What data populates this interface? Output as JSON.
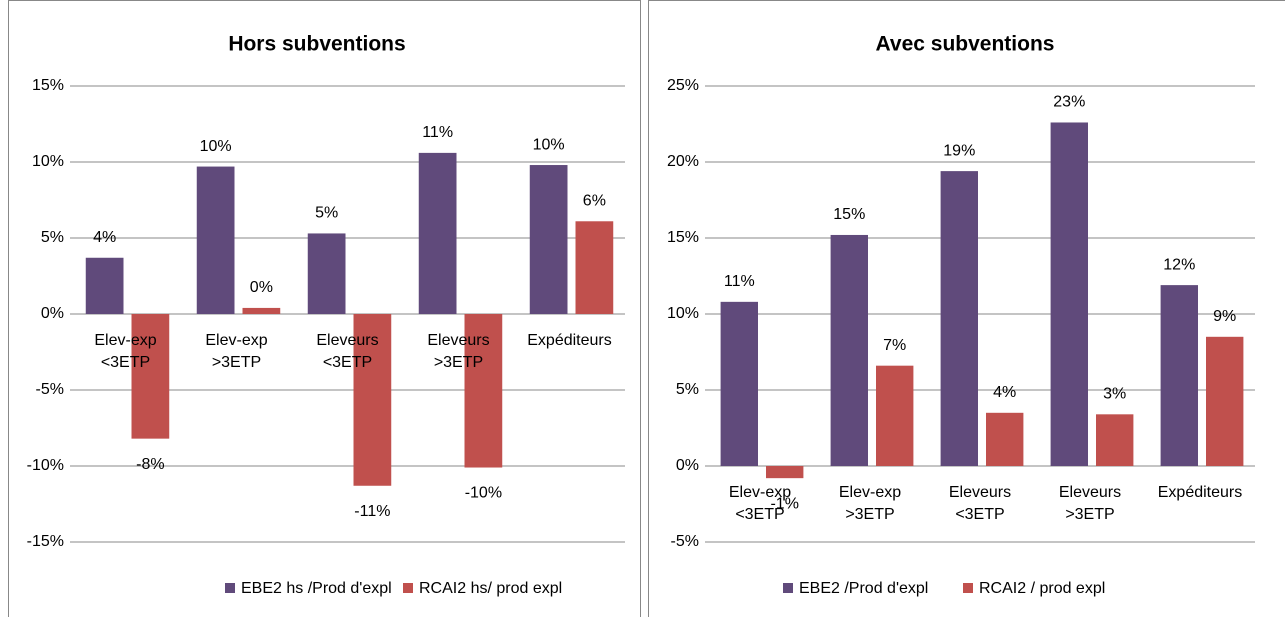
{
  "chart_data": [
    {
      "type": "bar",
      "title": "Hors subventions",
      "categories": [
        "Elev-exp <3ETP",
        "Elev-exp >3ETP",
        "Eleveurs <3ETP",
        "Eleveurs >3ETP",
        "Expéditeurs"
      ],
      "series": [
        {
          "name": "EBE2 hs /Prod d'expl",
          "color": "#604a7b",
          "values": [
            3.7,
            9.7,
            5.3,
            10.6,
            9.8
          ],
          "value_labels": [
            "4%",
            "10%",
            "5%",
            "11%",
            "10%"
          ]
        },
        {
          "name": "RCAI2 hs/ prod expl",
          "color": "#c0504d",
          "values": [
            -8.2,
            0.4,
            -11.3,
            -10.1,
            6.1
          ],
          "value_labels": [
            "-8%",
            "0%",
            "-11%",
            "-10%",
            "6%"
          ]
        }
      ],
      "ylim": [
        -15,
        15
      ],
      "yticks": [
        {
          "value": -15,
          "label": "-15%"
        },
        {
          "value": -10,
          "label": "-10%"
        },
        {
          "value": -5,
          "label": "-5%"
        },
        {
          "value": 0,
          "label": "0%"
        },
        {
          "value": 5,
          "label": "5%"
        },
        {
          "value": 10,
          "label": "10%"
        },
        {
          "value": 15,
          "label": "15%"
        }
      ],
      "grid": true,
      "legend": "bottom"
    },
    {
      "type": "bar",
      "title": "Avec subventions",
      "categories": [
        "Elev-exp <3ETP",
        "Elev-exp >3ETP",
        "Eleveurs <3ETP",
        "Eleveurs >3ETP",
        "Expéditeurs"
      ],
      "series": [
        {
          "name": "EBE2 /Prod d'expl",
          "color": "#604a7b",
          "values": [
            10.8,
            15.2,
            19.4,
            22.6,
            11.9
          ],
          "value_labels": [
            "11%",
            "15%",
            "19%",
            "23%",
            "12%"
          ]
        },
        {
          "name": "RCAI2 / prod expl",
          "color": "#c0504d",
          "values": [
            -0.8,
            6.6,
            3.5,
            3.4,
            8.5
          ],
          "value_labels": [
            "-1%",
            "7%",
            "4%",
            "3%",
            "9%"
          ]
        }
      ],
      "ylim": [
        -5,
        25
      ],
      "yticks": [
        {
          "value": -5,
          "label": "-5%"
        },
        {
          "value": 0,
          "label": "0%"
        },
        {
          "value": 5,
          "label": "5%"
        },
        {
          "value": 10,
          "label": "10%"
        },
        {
          "value": 15,
          "label": "15%"
        },
        {
          "value": 20,
          "label": "20%"
        },
        {
          "value": 25,
          "label": "25%"
        }
      ],
      "grid": true,
      "legend": "bottom"
    }
  ]
}
